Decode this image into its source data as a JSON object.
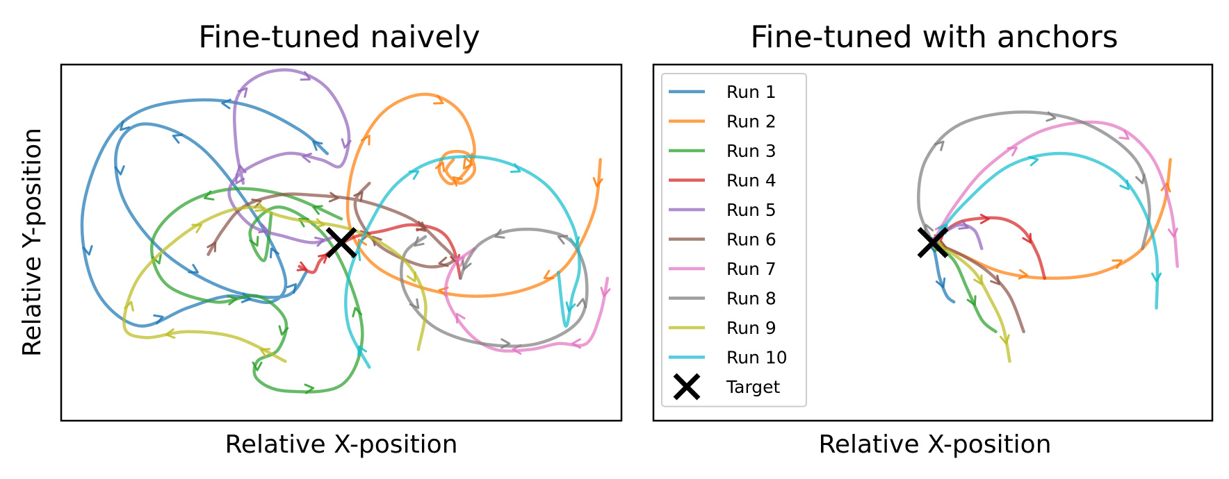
{
  "chart_data": [
    {
      "type": "line",
      "title": "Fine-tuned naively",
      "xlabel": "Relative X-position",
      "ylabel": "Relative Y-position",
      "xlim": [
        -4.0,
        4.0
      ],
      "ylim": [
        -3.0,
        3.0
      ],
      "grid": false,
      "legend": null,
      "target": [
        0,
        0
      ],
      "series": [
        {
          "name": "Run 1",
          "color": "#1f77b4",
          "x": [
            -0.2,
            -0.6,
            -1.3,
            -2.1,
            -2.9,
            -3.4,
            -3.7,
            -3.5,
            -2.9,
            -2.2,
            -1.6,
            -1.0,
            -0.8,
            -1.2,
            -2.0,
            -2.8,
            -3.2,
            -3.1,
            -2.5,
            -1.6,
            -0.8,
            -0.5
          ],
          "y": [
            1.5,
            1.9,
            2.3,
            2.4,
            2.2,
            1.6,
            0.4,
            -0.8,
            -1.4,
            -1.1,
            -0.9,
            -1.0,
            -0.6,
            0.4,
            1.6,
            2.0,
            1.6,
            0.7,
            -0.2,
            -0.8,
            -0.9,
            -0.5
          ]
        },
        {
          "name": "Run 2",
          "color": "#ff7f0e",
          "x": [
            3.7,
            3.6,
            3.2,
            2.6,
            1.8,
            1.0,
            0.4,
            0.1,
            0.2,
            0.6,
            1.2,
            1.7,
            1.9,
            1.6,
            1.4,
            1.5,
            1.8,
            1.9,
            1.7,
            1.5,
            1.6
          ],
          "y": [
            1.4,
            0.5,
            -0.4,
            -0.8,
            -0.9,
            -0.7,
            -0.3,
            0.4,
            1.4,
            2.2,
            2.5,
            2.2,
            1.5,
            1.0,
            1.2,
            1.5,
            1.5,
            1.2,
            1.0,
            1.2,
            1.4
          ]
        },
        {
          "name": "Run 3",
          "color": "#2ca02c",
          "x": [
            0.0,
            -0.8,
            -1.6,
            -2.3,
            -2.7,
            -2.5,
            -1.8,
            -1.2,
            -0.8,
            -0.9,
            -1.2,
            -1.2,
            -0.8,
            0.0,
            0.3,
            0.1,
            -0.3,
            -0.9,
            -1.3,
            -1.1,
            -1.0
          ],
          "y": [
            0.4,
            0.8,
            0.9,
            0.6,
            0.0,
            -0.7,
            -1.0,
            -0.9,
            -1.3,
            -1.8,
            -2.0,
            -2.3,
            -2.5,
            -2.4,
            -1.6,
            -0.6,
            0.2,
            0.6,
            0.2,
            -0.3,
            0.5
          ]
        },
        {
          "name": "Run 4",
          "color": "#d62728",
          "x": [
            -0.6,
            -0.4,
            -0.3,
            -0.1,
            0.2,
            0.6,
            1.0,
            1.4,
            1.6,
            1.7
          ],
          "y": [
            -0.4,
            -0.5,
            -0.3,
            -0.1,
            0.1,
            0.2,
            0.3,
            0.2,
            -0.1,
            -0.6
          ]
        },
        {
          "name": "Run 5",
          "color": "#9467bd",
          "x": [
            -1.4,
            -1.5,
            -1.5,
            -1.2,
            -0.7,
            -0.2,
            0.1,
            0.0,
            -0.3,
            -0.8,
            -1.4,
            -1.6,
            -1.3,
            -0.8,
            -0.4,
            -0.1
          ],
          "y": [
            1.0,
            1.6,
            2.4,
            2.8,
            2.9,
            2.6,
            1.9,
            1.3,
            1.4,
            1.5,
            1.2,
            0.8,
            0.3,
            0.1,
            0.0,
            0.1
          ]
        },
        {
          "name": "Run 6",
          "color": "#8c564b",
          "x": [
            -1.9,
            -1.7,
            -1.4,
            -0.9,
            -0.4,
            0.3,
            1.0,
            1.4,
            1.6,
            1.2,
            0.6,
            0.3,
            0.2,
            0.4
          ],
          "y": [
            -0.2,
            0.2,
            0.6,
            0.8,
            0.8,
            0.7,
            0.4,
            0.0,
            -0.3,
            -0.4,
            -0.1,
            0.3,
            0.7,
            1.0
          ]
        },
        {
          "name": "Run 7",
          "color": "#e377c2",
          "x": [
            3.8,
            3.7,
            3.5,
            3.1,
            2.7,
            2.2,
            1.8,
            1.5,
            1.6,
            1.9
          ],
          "y": [
            -0.6,
            -1.2,
            -1.7,
            -1.7,
            -1.8,
            -1.8,
            -1.5,
            -0.9,
            -0.4,
            -0.1
          ]
        },
        {
          "name": "Run 8",
          "color": "#7f7f7f",
          "x": [
            1.2,
            0.9,
            0.9,
            1.3,
            2.0,
            2.8,
            3.4,
            3.5,
            3.3,
            2.9,
            2.4,
            2.0,
            1.8,
            1.7
          ],
          "y": [
            0.1,
            -0.2,
            -0.8,
            -1.4,
            -1.7,
            -1.7,
            -1.3,
            -0.6,
            0.0,
            0.2,
            0.2,
            0.0,
            -0.3,
            -0.6
          ]
        },
        {
          "name": "Run 9",
          "color": "#bcbd22",
          "x": [
            -0.8,
            -1.5,
            -2.2,
            -2.8,
            -3.1,
            -2.9,
            -2.3,
            -1.7,
            -1.2,
            -1.0,
            -0.7,
            0.2,
            0.9,
            1.2,
            1.1
          ],
          "y": [
            -2.0,
            -1.6,
            -1.5,
            -1.6,
            -1.4,
            -0.6,
            0.1,
            0.5,
            0.6,
            0.5,
            0.4,
            0.2,
            -0.3,
            -1.0,
            -1.8
          ]
        },
        {
          "name": "Run 10",
          "color": "#17becf",
          "x": [
            0.4,
            0.1,
            0.1,
            0.4,
            0.8,
            1.4,
            2.2,
            2.9,
            3.3,
            3.4,
            3.3,
            3.2,
            3.1
          ],
          "y": [
            -2.1,
            -1.4,
            -0.6,
            0.3,
            1.0,
            1.4,
            1.4,
            1.0,
            0.3,
            -0.4,
            -0.9,
            -1.4,
            -0.5
          ]
        }
      ]
    },
    {
      "type": "line",
      "title": "Fine-tuned with anchors",
      "xlabel": "Relative X-position",
      "ylabel": "",
      "xlim": [
        -4.0,
        4.0
      ],
      "ylim": [
        -3.0,
        3.0
      ],
      "grid": false,
      "legend": "upper-left",
      "target": [
        0,
        0
      ],
      "target_label": "Target",
      "series": [
        {
          "name": "Run 1",
          "color": "#1f77b4",
          "x": [
            0.0,
            0.05,
            0.1,
            0.2,
            0.3
          ],
          "y": [
            0.0,
            -0.3,
            -0.6,
            -0.9,
            -1.0
          ]
        },
        {
          "name": "Run 2",
          "color": "#ff7f0e",
          "x": [
            0.0,
            0.4,
            1.0,
            1.7,
            2.4,
            3.0,
            3.3,
            3.4
          ],
          "y": [
            0.0,
            -0.2,
            -0.5,
            -0.6,
            -0.5,
            -0.1,
            0.6,
            1.4
          ]
        },
        {
          "name": "Run 3",
          "color": "#2ca02c",
          "x": [
            0.0,
            0.3,
            0.5,
            0.7,
            0.9
          ],
          "y": [
            0.0,
            -0.3,
            -0.8,
            -1.3,
            -1.5
          ]
        },
        {
          "name": "Run 4",
          "color": "#d62728",
          "x": [
            0.0,
            0.3,
            0.6,
            1.0,
            1.3,
            1.5,
            1.6
          ],
          "y": [
            0.0,
            0.3,
            0.4,
            0.4,
            0.2,
            -0.2,
            -0.6
          ]
        },
        {
          "name": "Run 5",
          "color": "#9467bd",
          "x": [
            0.0,
            0.2,
            0.4,
            0.6,
            0.7
          ],
          "y": [
            0.0,
            0.2,
            0.3,
            0.2,
            -0.1
          ]
        },
        {
          "name": "Run 6",
          "color": "#8c564b",
          "x": [
            0.0,
            0.4,
            0.8,
            1.1,
            1.3
          ],
          "y": [
            0.0,
            -0.2,
            -0.5,
            -0.9,
            -1.5
          ]
        },
        {
          "name": "Run 7",
          "color": "#e377c2",
          "x": [
            0.0,
            0.3,
            0.8,
            1.6,
            2.5,
            3.1,
            3.4,
            3.5
          ],
          "y": [
            0.0,
            0.6,
            1.3,
            1.9,
            2.0,
            1.5,
            0.6,
            -0.4
          ]
        },
        {
          "name": "Run 8",
          "color": "#7f7f7f",
          "x": [
            0.0,
            -0.2,
            -0.1,
            0.4,
            1.3,
            2.2,
            2.9,
            3.1,
            3.0
          ],
          "y": [
            0.0,
            0.6,
            1.4,
            2.0,
            2.2,
            2.0,
            1.4,
            0.6,
            -0.1
          ]
        },
        {
          "name": "Run 9",
          "color": "#bcbd22",
          "x": [
            0.0,
            0.3,
            0.6,
            0.8,
            1.0,
            1.1
          ],
          "y": [
            0.0,
            -0.2,
            -0.5,
            -0.9,
            -1.4,
            -2.0
          ]
        },
        {
          "name": "Run 10",
          "color": "#17becf",
          "x": [
            0.0,
            0.4,
            1.1,
            1.9,
            2.6,
            3.0,
            3.2,
            3.2
          ],
          "y": [
            0.0,
            0.6,
            1.3,
            1.5,
            1.2,
            0.6,
            -0.2,
            -1.1
          ]
        }
      ]
    }
  ]
}
